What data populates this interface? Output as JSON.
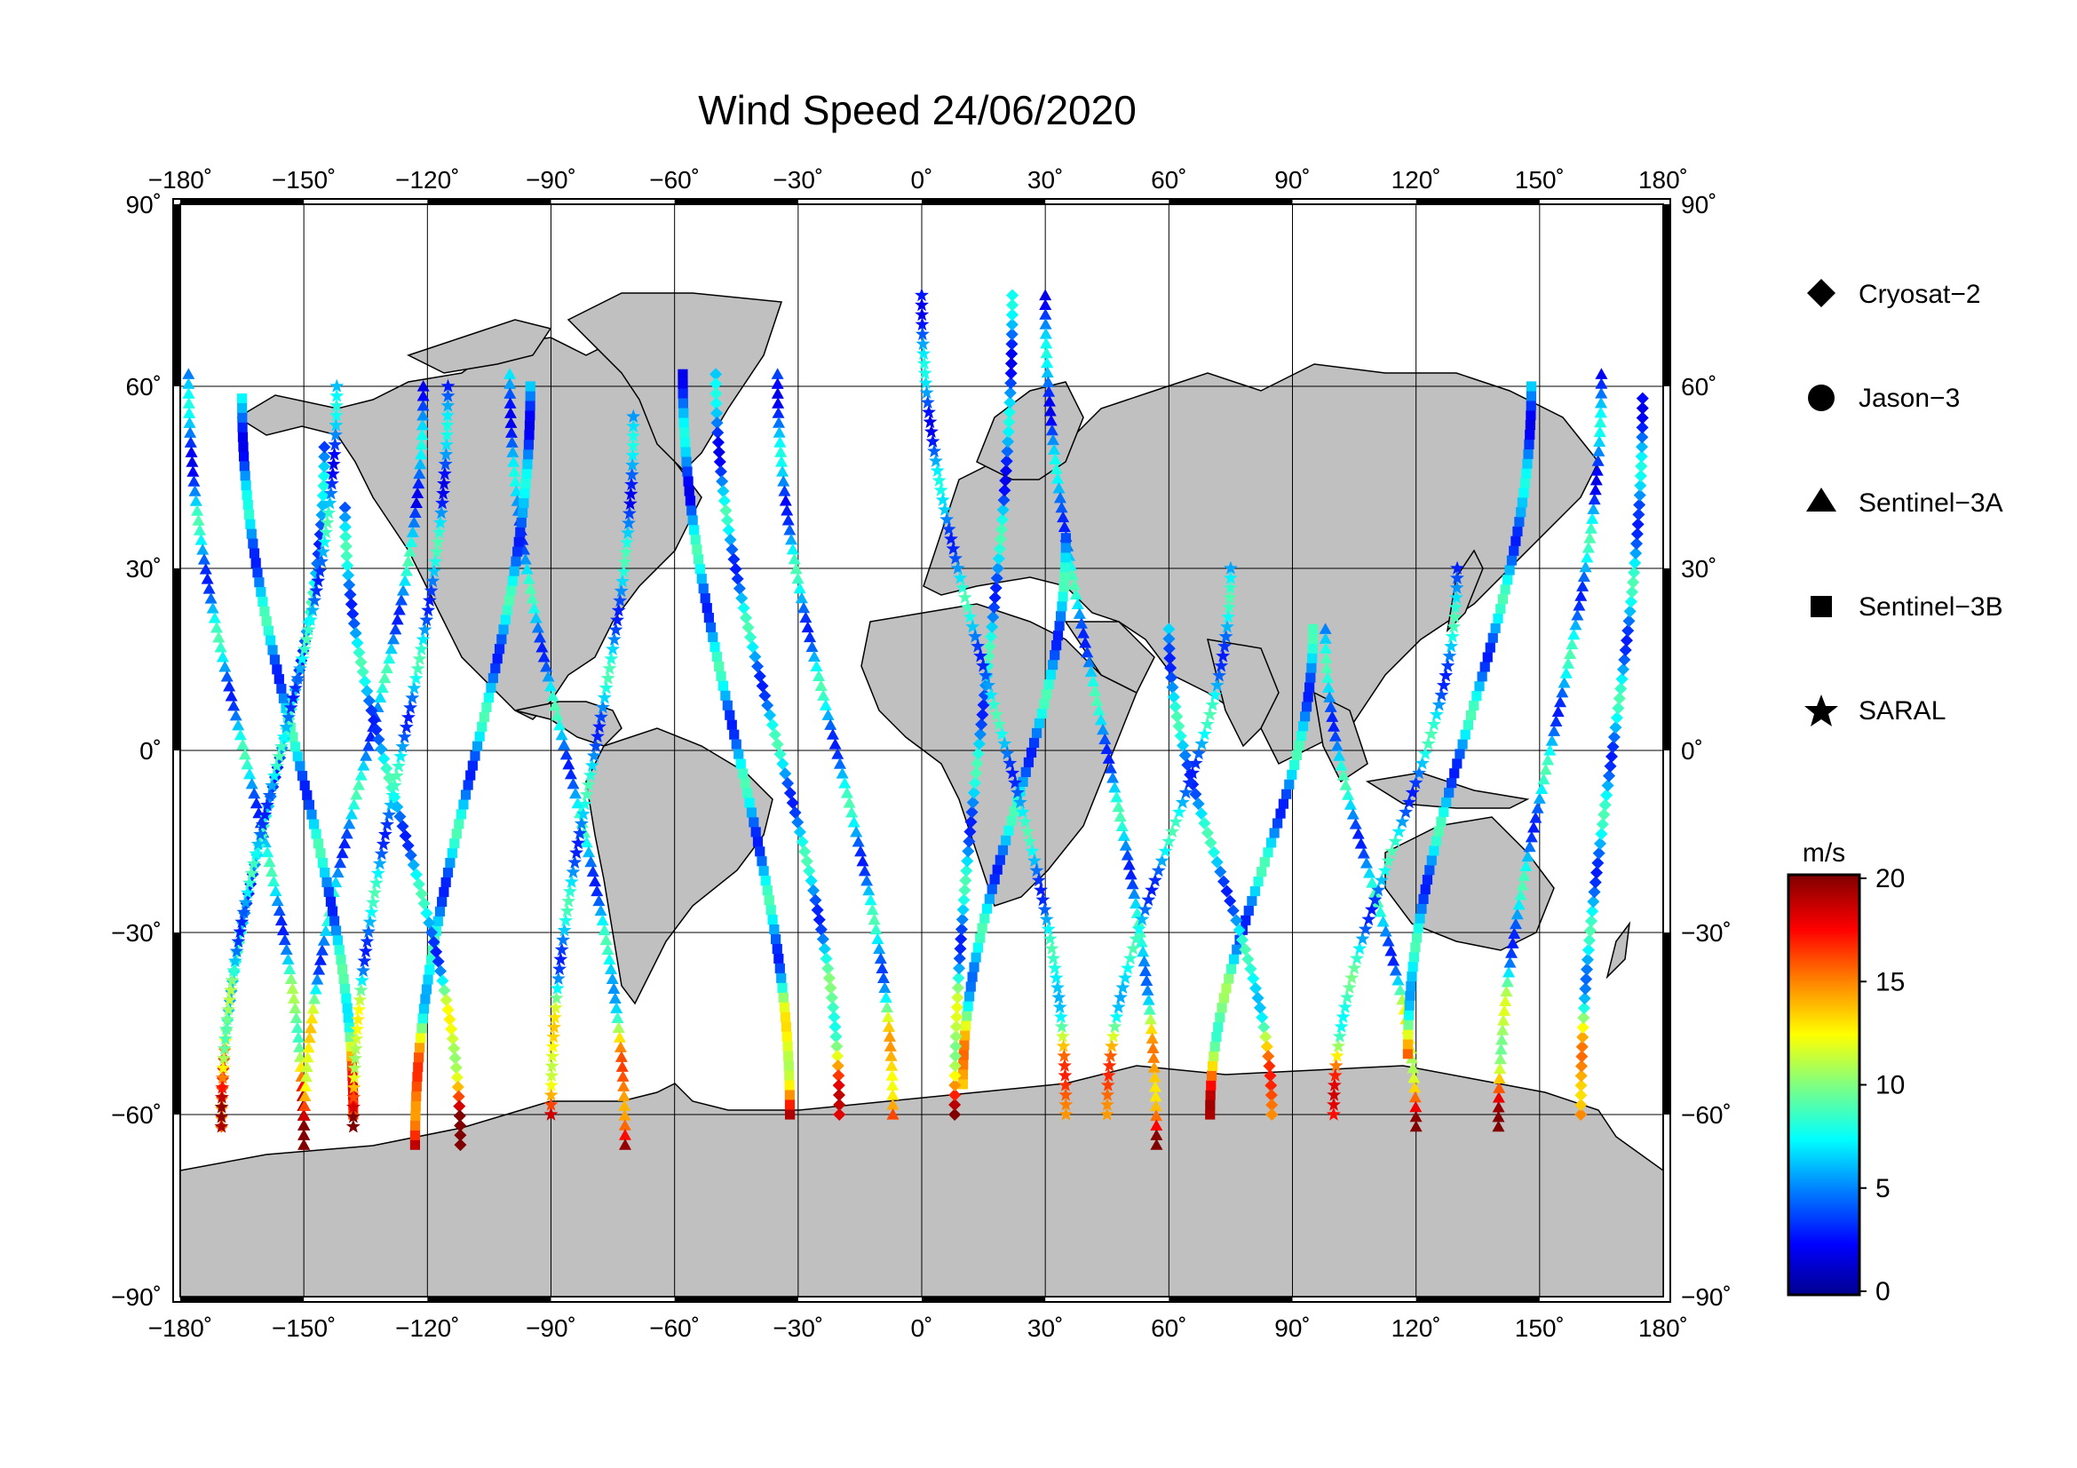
{
  "title": "Wind Speed 24/06/2020",
  "map": {
    "lon_ticks": [
      "−180˚",
      "−150˚",
      "−120˚",
      "−90˚",
      "−60˚",
      "−30˚",
      "0˚",
      "30˚",
      "60˚",
      "90˚",
      "120˚",
      "150˚",
      "180˚"
    ],
    "lat_ticks": [
      "90˚",
      "60˚",
      "30˚",
      "0˚",
      "−30˚",
      "−60˚",
      "−90˚"
    ],
    "land_color": "#c0c0c0",
    "coast_color": "#000000",
    "grid": "on"
  },
  "legend": {
    "entries": [
      {
        "label": "Cryosat−2",
        "marker": "diamond"
      },
      {
        "label": "Jason−3",
        "marker": "circle"
      },
      {
        "label": "Sentinel−3A",
        "marker": "triangle"
      },
      {
        "label": "Sentinel−3B",
        "marker": "square"
      },
      {
        "label": "SARAL",
        "marker": "star"
      }
    ]
  },
  "colorbar": {
    "unit": "m/s",
    "ticks": [
      "0",
      "5",
      "10",
      "15",
      "20"
    ],
    "min": 0,
    "max": 20,
    "colormap": [
      "#00008f",
      "#0000ff",
      "#0080ff",
      "#00ffff",
      "#80ff80",
      "#ffff00",
      "#ff8000",
      "#ff0000",
      "#800000"
    ]
  },
  "chart_data": {
    "type": "scatter",
    "title": "Wind Speed 24/06/2020",
    "xlim": [
      -180,
      180
    ],
    "ylim": [
      -90,
      90
    ],
    "grid": "on",
    "legend_placement": "right",
    "color_scale": {
      "unit": "m/s",
      "range": [
        0,
        20
      ]
    },
    "series": [
      {
        "name": "Sentinel−3A",
        "marker": "triangle",
        "tracks": [
          {
            "lon0": -178,
            "lat0": 62,
            "lon1": -150,
            "lat1": -65
          },
          {
            "lon0": -150,
            "lat0": -65,
            "lon1": -121,
            "lat1": 60
          },
          {
            "lon0": -100,
            "lat0": 62,
            "lon1": -72,
            "lat1": -65
          },
          {
            "lon0": -35,
            "lat0": 62,
            "lon1": -7,
            "lat1": -60
          },
          {
            "lon0": 30,
            "lat0": 75,
            "lon1": 57,
            "lat1": -65
          },
          {
            "lon0": 98,
            "lat0": 20,
            "lon1": 120,
            "lat1": -62
          },
          {
            "lon0": 140,
            "lat0": -62,
            "lon1": 165,
            "lat1": 62
          }
        ]
      },
      {
        "name": "Sentinel−3B",
        "marker": "square",
        "tracks": [
          {
            "lon0": -165,
            "lat0": 58,
            "lon1": -138,
            "lat1": -60
          },
          {
            "lon0": -123,
            "lat0": -65,
            "lon1": -95,
            "lat1": 60
          },
          {
            "lon0": -58,
            "lat0": 62,
            "lon1": -32,
            "lat1": -60
          },
          {
            "lon0": 10,
            "lat0": -55,
            "lon1": 35,
            "lat1": 35
          },
          {
            "lon0": 70,
            "lat0": -60,
            "lon1": 95,
            "lat1": 20
          },
          {
            "lon0": 118,
            "lat0": -50,
            "lon1": 148,
            "lat1": 60
          }
        ]
      },
      {
        "name": "Cryosat−2",
        "marker": "diamond",
        "tracks": [
          {
            "lon0": -170,
            "lat0": -62,
            "lon1": -145,
            "lat1": 50
          },
          {
            "lon0": -140,
            "lat0": 40,
            "lon1": -112,
            "lat1": -65
          },
          {
            "lon0": -50,
            "lat0": 62,
            "lon1": -20,
            "lat1": -60
          },
          {
            "lon0": 8,
            "lat0": -60,
            "lon1": 22,
            "lat1": 75
          },
          {
            "lon0": 60,
            "lat0": 20,
            "lon1": 85,
            "lat1": -60
          },
          {
            "lon0": 160,
            "lat0": -60,
            "lon1": 175,
            "lat1": 58
          }
        ]
      },
      {
        "name": "SARAL",
        "marker": "star",
        "tracks": [
          {
            "lon0": -170,
            "lat0": -62,
            "lon1": -142,
            "lat1": 60
          },
          {
            "lon0": -138,
            "lat0": -62,
            "lon1": -115,
            "lat1": 60
          },
          {
            "lon0": -90,
            "lat0": -60,
            "lon1": -70,
            "lat1": 55
          },
          {
            "lon0": 0,
            "lat0": 75,
            "lon1": 35,
            "lat1": -60
          },
          {
            "lon0": 45,
            "lat0": -60,
            "lon1": 75,
            "lat1": 30
          },
          {
            "lon0": 100,
            "lat0": -60,
            "lon1": 130,
            "lat1": 30
          }
        ]
      }
    ]
  }
}
